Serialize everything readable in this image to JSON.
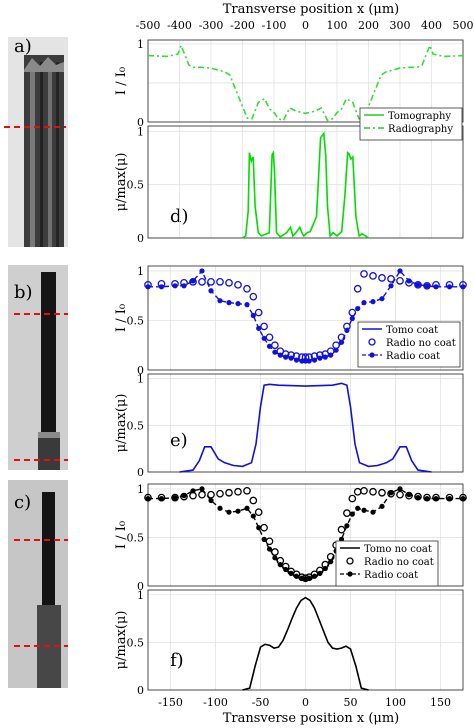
{
  "top_axis": {
    "label": "Transverse position x (μm)",
    "ticks": [
      "-500",
      "-400",
      "-300",
      "-200",
      "-100",
      "0",
      "100",
      "200",
      "300",
      "400",
      "500"
    ]
  },
  "bottom_axis": {
    "label": "Transverse position x (μm)",
    "ticks": [
      "-150",
      "-100",
      "-50",
      "0",
      "50",
      "100",
      "150"
    ]
  },
  "panel_labels": {
    "a": "a)",
    "b": "b)",
    "c": "c)",
    "d": "d)",
    "e": "e)",
    "f": "f)"
  },
  "ylabels": {
    "intensity": "I / I₀",
    "mu": "μ/max(μ)"
  },
  "chart_data": [
    {
      "type": "line",
      "panel": "a-intensity",
      "ylim": [
        0,
        1.05
      ],
      "x": [
        -500,
        -440,
        -405,
        -395,
        -370,
        -355,
        -330,
        -300,
        -255,
        -240,
        -225,
        -215,
        -205,
        -200,
        -185,
        -170,
        -150,
        -130,
        -115,
        -100,
        -85,
        -70,
        -50,
        -30,
        0,
        30,
        50,
        70,
        85,
        100,
        115,
        130,
        150,
        170,
        185,
        200,
        205,
        215,
        225,
        240,
        255,
        300,
        330,
        355,
        370,
        395,
        405,
        440,
        500
      ],
      "series": [
        {
          "name": "Radiography",
          "color": "#33dd33",
          "style": "dash-dot",
          "values": [
            0.85,
            0.84,
            0.87,
            0.98,
            0.73,
            0.7,
            0.7,
            0.69,
            0.64,
            0.6,
            0.45,
            0.35,
            0.25,
            0.2,
            0.05,
            0.04,
            0.25,
            0.3,
            0.17,
            0.12,
            0.04,
            0.02,
            0.18,
            0.14,
            0.11,
            0.14,
            0.18,
            0.02,
            0.04,
            0.12,
            0.17,
            0.3,
            0.25,
            0.04,
            0.05,
            0.2,
            0.25,
            0.35,
            0.45,
            0.6,
            0.64,
            0.69,
            0.7,
            0.7,
            0.73,
            0.98,
            0.87,
            0.84,
            0.85
          ]
        }
      ],
      "legend": [
        "Tomography",
        "Radiography"
      ],
      "legend_placement": "right"
    },
    {
      "type": "line",
      "panel": "a-mu",
      "ylim": [
        0,
        1.05
      ],
      "x": [
        -200,
        -190,
        -182,
        -178,
        -172,
        -166,
        -160,
        -150,
        -140,
        -115,
        -106,
        -102,
        -98,
        -92,
        -80,
        -60,
        -48,
        -40,
        -30,
        -18,
        -10,
        -5,
        5,
        15,
        35,
        48,
        58,
        64,
        70,
        78,
        88,
        100,
        115,
        125,
        134,
        138,
        144,
        150,
        160,
        170,
        180,
        200
      ],
      "series": [
        {
          "name": "Tomography",
          "color": "#00dd00",
          "style": "solid",
          "values": [
            0,
            0.02,
            0.25,
            0.8,
            0.72,
            0.76,
            0.3,
            0.05,
            0.02,
            0.05,
            0.78,
            0.8,
            0.6,
            0.05,
            0.01,
            0.05,
            0.1,
            0.02,
            0.05,
            0.1,
            0.04,
            0.02,
            0.05,
            0.06,
            0.2,
            0.94,
            0.98,
            0.78,
            0.3,
            0.02,
            0.05,
            0.02,
            0.06,
            0.4,
            0.8,
            0.79,
            0.74,
            0.76,
            0.2,
            0.02,
            0.04,
            0
          ]
        }
      ]
    },
    {
      "type": "scatter",
      "panel": "b-intensity",
      "ylim": [
        0,
        1.05
      ],
      "x": [
        -175,
        -160,
        -145,
        -135,
        -125,
        -115,
        -105,
        -95,
        -85,
        -75,
        -65,
        -58,
        -52,
        -46,
        -40,
        -34,
        -28,
        -22,
        -16,
        -10,
        -4,
        0,
        4,
        10,
        16,
        22,
        28,
        34,
        40,
        46,
        52,
        58,
        65,
        75,
        85,
        95,
        105,
        115,
        125,
        135,
        145,
        160,
        175
      ],
      "series": [
        {
          "name": "Radio no coat",
          "color": "#1010e0",
          "marker": "open-circle",
          "values": [
            0.86,
            0.87,
            0.87,
            0.88,
            0.89,
            0.89,
            0.89,
            0.89,
            0.88,
            0.86,
            0.82,
            0.74,
            0.58,
            0.44,
            0.33,
            0.25,
            0.19,
            0.16,
            0.15,
            0.14,
            0.13,
            0.13,
            0.13,
            0.14,
            0.15,
            0.16,
            0.19,
            0.25,
            0.33,
            0.44,
            0.58,
            0.82,
            0.97,
            0.95,
            0.93,
            0.92,
            0.9,
            0.88,
            0.86,
            0.85,
            0.86,
            0.86,
            0.86
          ]
        },
        {
          "name": "Radio coat",
          "color": "#1010e0",
          "marker": "filled-dash",
          "values": [
            0.84,
            0.84,
            0.85,
            0.85,
            0.9,
            1.0,
            0.8,
            0.7,
            0.68,
            0.67,
            0.66,
            0.55,
            0.42,
            0.32,
            0.24,
            0.18,
            0.15,
            0.13,
            0.12,
            0.1,
            0.09,
            0.09,
            0.09,
            0.1,
            0.12,
            0.13,
            0.15,
            0.2,
            0.28,
            0.4,
            0.52,
            0.62,
            0.68,
            0.69,
            0.72,
            0.85,
            1.0,
            0.9,
            0.86,
            0.85,
            0.84,
            0.84,
            0.84
          ]
        }
      ]
    },
    {
      "type": "line",
      "panel": "b-mu",
      "ylim": [
        0,
        1.05
      ],
      "x": [
        -140,
        -125,
        -118,
        -112,
        -105,
        -97,
        -90,
        -80,
        -70,
        -60,
        -55,
        -50,
        -46,
        -40,
        -30,
        0,
        30,
        40,
        46,
        50,
        55,
        60,
        70,
        80,
        90,
        97,
        105,
        112,
        118,
        125,
        140
      ],
      "series": [
        {
          "name": "Tomo coat",
          "color": "#1010e0",
          "style": "solid",
          "values": [
            0,
            0.02,
            0.12,
            0.27,
            0.27,
            0.14,
            0.1,
            0.07,
            0.06,
            0.1,
            0.3,
            0.7,
            0.93,
            0.94,
            0.93,
            0.92,
            0.93,
            0.95,
            0.93,
            0.7,
            0.3,
            0.1,
            0.06,
            0.07,
            0.1,
            0.14,
            0.27,
            0.27,
            0.12,
            0.02,
            0
          ]
        }
      ],
      "legend": [
        "Tomo coat",
        "Radio no coat",
        "Radio coat"
      ],
      "legend_placement": "right"
    },
    {
      "type": "scatter",
      "panel": "c-intensity",
      "ylim": [
        0,
        1.05
      ],
      "x": [
        -175,
        -160,
        -145,
        -135,
        -125,
        -115,
        -105,
        -95,
        -85,
        -75,
        -65,
        -58,
        -52,
        -46,
        -40,
        -34,
        -28,
        -22,
        -16,
        -10,
        -4,
        0,
        4,
        10,
        16,
        22,
        28,
        34,
        40,
        46,
        52,
        58,
        65,
        75,
        85,
        95,
        105,
        115,
        125,
        135,
        145,
        160,
        175
      ],
      "series": [
        {
          "name": "Radio no coat",
          "color": "#000000",
          "marker": "open-circle",
          "values": [
            0.91,
            0.91,
            0.91,
            0.92,
            0.93,
            0.94,
            0.94,
            0.95,
            0.96,
            0.97,
            0.98,
            0.88,
            0.76,
            0.6,
            0.46,
            0.35,
            0.26,
            0.2,
            0.15,
            0.12,
            0.09,
            0.08,
            0.09,
            0.12,
            0.16,
            0.22,
            0.3,
            0.42,
            0.58,
            0.75,
            0.9,
            0.97,
            0.98,
            0.97,
            0.96,
            0.95,
            0.94,
            0.93,
            0.92,
            0.91,
            0.91,
            0.91,
            0.91
          ]
        },
        {
          "name": "Radio coat",
          "color": "#000000",
          "marker": "filled-dash",
          "values": [
            0.9,
            0.9,
            0.91,
            0.93,
            0.98,
            1.0,
            0.88,
            0.8,
            0.76,
            0.77,
            0.8,
            0.72,
            0.6,
            0.48,
            0.38,
            0.29,
            0.22,
            0.17,
            0.13,
            0.1,
            0.08,
            0.07,
            0.08,
            0.1,
            0.13,
            0.18,
            0.25,
            0.36,
            0.48,
            0.62,
            0.74,
            0.8,
            0.78,
            0.76,
            0.82,
            0.96,
            1.0,
            0.94,
            0.91,
            0.9,
            0.9,
            0.9,
            0.9
          ]
        }
      ]
    },
    {
      "type": "line",
      "panel": "c-mu",
      "ylim": [
        0,
        1.05
      ],
      "x": [
        -70,
        -62,
        -56,
        -50,
        -45,
        -40,
        -35,
        -30,
        -25,
        -20,
        -15,
        -10,
        -5,
        0,
        5,
        10,
        15,
        20,
        25,
        30,
        35,
        40,
        45,
        50,
        56,
        62,
        70
      ],
      "series": [
        {
          "name": "Tomo no coat",
          "color": "#000000",
          "style": "solid",
          "values": [
            0,
            0.02,
            0.25,
            0.45,
            0.48,
            0.47,
            0.44,
            0.45,
            0.52,
            0.63,
            0.75,
            0.86,
            0.94,
            0.97,
            0.94,
            0.86,
            0.74,
            0.62,
            0.5,
            0.44,
            0.43,
            0.44,
            0.46,
            0.43,
            0.25,
            0.02,
            0
          ]
        }
      ],
      "legend": [
        "Tomo no coat",
        "Radio no coat",
        "Radio coat"
      ],
      "legend_placement": "right"
    }
  ]
}
